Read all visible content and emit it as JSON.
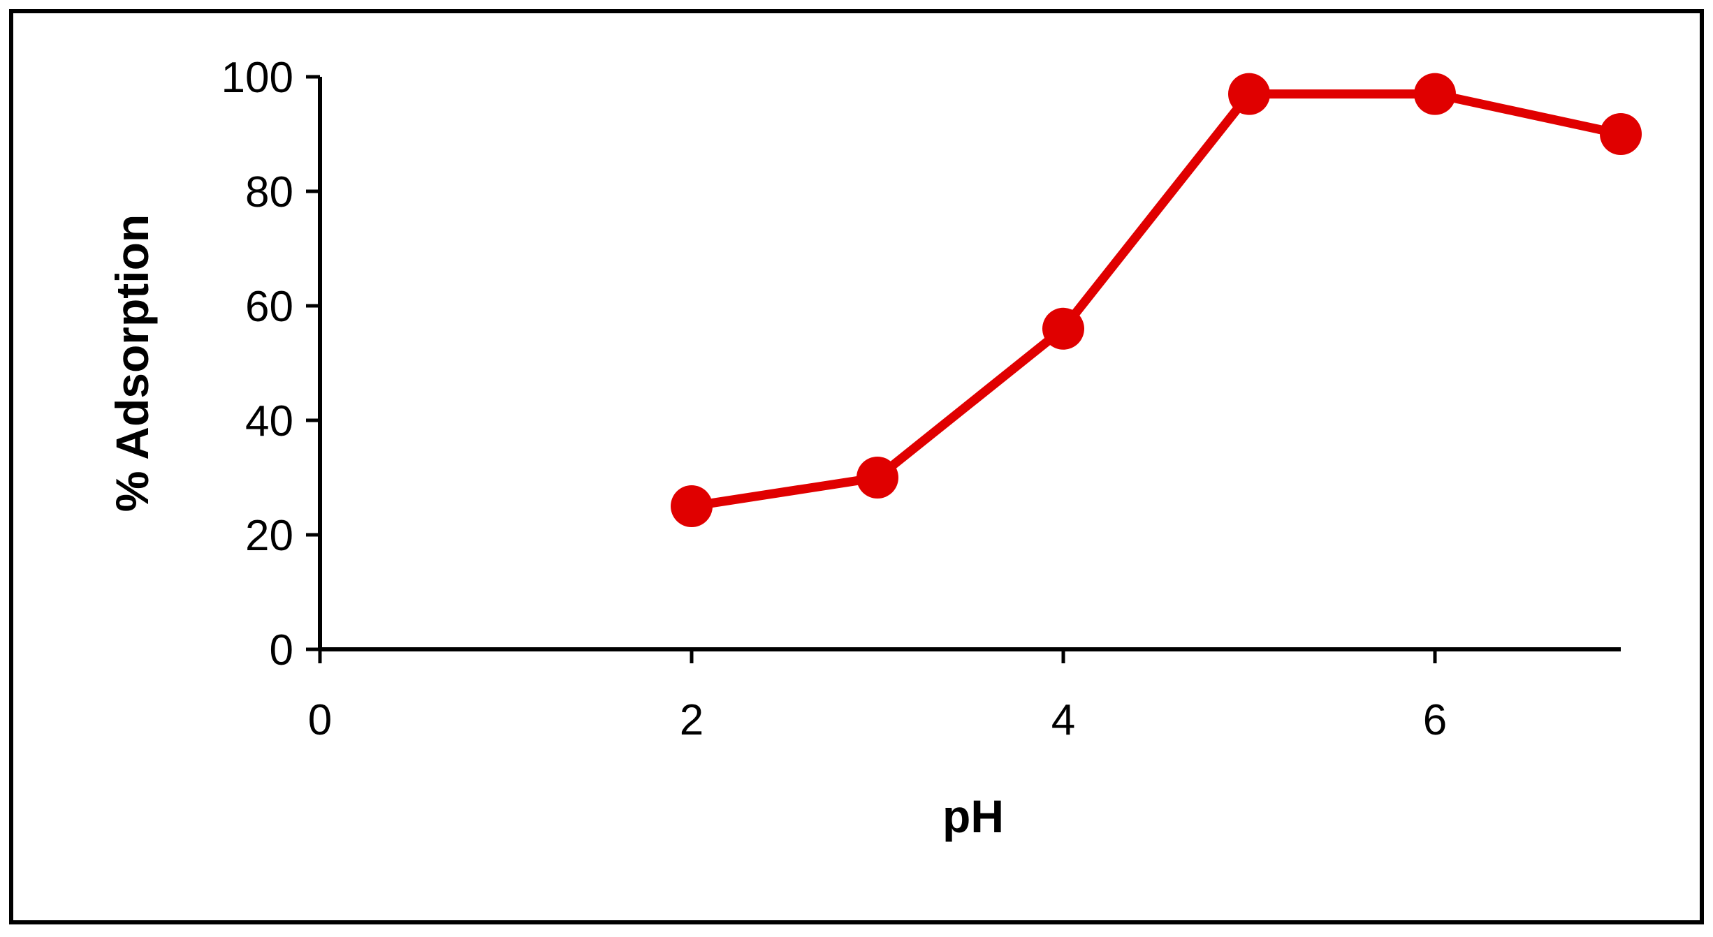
{
  "chart_data": {
    "type": "line",
    "title": "",
    "xlabel": "pH",
    "ylabel": "% Adsorption",
    "xlim": [
      0,
      7
    ],
    "ylim": [
      0,
      100
    ],
    "x_ticks": [
      0,
      2,
      4,
      6
    ],
    "y_ticks": [
      0,
      20,
      40,
      60,
      80,
      100
    ],
    "grid": false,
    "legend": "none",
    "series": [
      {
        "color": "#e00000",
        "marker": "circle",
        "points": [
          {
            "x": 2,
            "y": 25
          },
          {
            "x": 3,
            "y": 30
          },
          {
            "x": 4,
            "y": 56
          },
          {
            "x": 5,
            "y": 97
          },
          {
            "x": 6,
            "y": 97
          },
          {
            "x": 7,
            "y": 90
          }
        ]
      }
    ]
  }
}
